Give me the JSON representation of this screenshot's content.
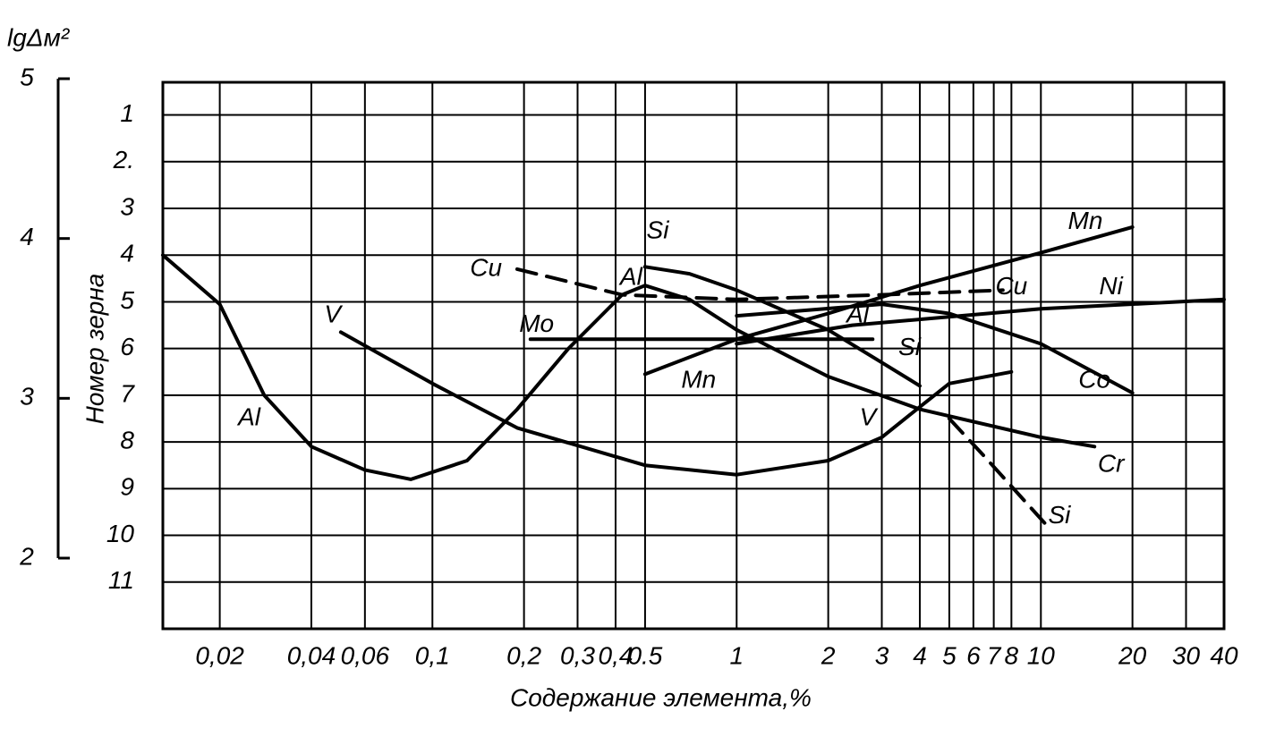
{
  "chart_data": {
    "type": "line",
    "x_label": "Содержание элемента,%",
    "y_label": "Номер зерна",
    "y2_label": "lgΔм²",
    "xscale": "log",
    "grid": true,
    "xlim": [
      0.013,
      40
    ],
    "xticks": [
      {
        "value": 0.02,
        "label": "0,02"
      },
      {
        "value": 0.04,
        "label": "0,04"
      },
      {
        "value": 0.06,
        "label": "0,06"
      },
      {
        "value": 0.1,
        "label": "0,1"
      },
      {
        "value": 0.2,
        "label": "0,2"
      },
      {
        "value": 0.3,
        "label": "0,3"
      },
      {
        "value": 0.4,
        "label": "0,4"
      },
      0.5,
      1,
      2,
      3,
      4,
      5,
      6,
      7,
      8,
      10,
      20,
      30,
      40
    ],
    "ylim": [
      12,
      0.3
    ],
    "yticks": [
      1,
      {
        "value": 2,
        "label": "2."
      },
      3,
      4,
      5,
      6,
      7,
      8,
      9,
      10,
      11
    ],
    "y2lim": [
      2,
      5
    ],
    "y2ticks": [
      2,
      3,
      4,
      5
    ],
    "series": [
      {
        "x": [
          0.013,
          0.02,
          0.028,
          0.04,
          0.06,
          0.085,
          0.13,
          0.19,
          0.28,
          0.42,
          0.5,
          0.7,
          1,
          2,
          4,
          10,
          15
        ],
        "values": [
          4.0,
          5.05,
          7.0,
          8.1,
          8.6,
          8.8,
          8.4,
          7.3,
          6.0,
          4.85,
          4.65,
          4.95,
          5.6,
          6.6,
          7.3,
          7.9,
          8.1
        ],
        "color": "#000000",
        "dashed": false
      },
      {
        "x": [
          0.05,
          0.1,
          0.19,
          0.5,
          1,
          2,
          3,
          4,
          5,
          8
        ],
        "values": [
          5.65,
          6.75,
          7.7,
          8.5,
          8.7,
          8.4,
          7.9,
          7.25,
          6.75,
          6.5
        ],
        "color": "#000000",
        "dashed": false
      },
      {
        "x": [
          0.5,
          0.7,
          1,
          2,
          3,
          4
        ],
        "values": [
          4.25,
          4.4,
          4.75,
          5.6,
          6.3,
          6.8
        ],
        "color": "#000000",
        "dashed": false
      },
      {
        "x": [
          5,
          6.5,
          10.5
        ],
        "values": [
          7.5,
          8.3,
          9.8
        ],
        "color": "#000000",
        "dashed": true
      },
      {
        "x": [
          0.5,
          1,
          2,
          4,
          10,
          20
        ],
        "values": [
          6.55,
          5.8,
          5.25,
          4.65,
          3.95,
          3.4
        ],
        "color": "#000000",
        "dashed": false
      },
      {
        "x": [
          1,
          2.4,
          10,
          40
        ],
        "values": [
          5.9,
          5.5,
          5.15,
          4.95
        ],
        "color": "#000000",
        "dashed": false
      },
      {
        "x": [
          1,
          3,
          5,
          10,
          20
        ],
        "values": [
          5.3,
          5.05,
          5.25,
          5.9,
          6.95
        ],
        "color": "#000000",
        "dashed": false
      },
      {
        "x": [
          0.19,
          0.42,
          1,
          3,
          7.5
        ],
        "values": [
          4.3,
          4.85,
          4.95,
          4.85,
          4.75
        ],
        "color": "#000000",
        "dashed": true
      },
      {
        "x": [
          0.21,
          2.8
        ],
        "values": [
          5.8,
          5.8
        ],
        "color": "#000000",
        "dashed": false
      }
    ],
    "annotations": [
      {
        "text": "Al",
        "x": 0.025,
        "y": 7.5
      },
      {
        "text": "Al",
        "x": 0.45,
        "y": 4.5
      },
      {
        "text": "Al",
        "x": 2.5,
        "y": 5.3
      },
      {
        "text": "V",
        "x": 0.047,
        "y": 5.3
      },
      {
        "text": "V",
        "x": 2.7,
        "y": 7.5
      },
      {
        "text": "Si",
        "x": 0.55,
        "y": 3.5
      },
      {
        "text": "Si",
        "x": 3.7,
        "y": 6.0
      },
      {
        "text": "Si",
        "x": 11.5,
        "y": 9.6
      },
      {
        "text": "Cu",
        "x": 0.15,
        "y": 4.3
      },
      {
        "text": "Cu",
        "x": 8,
        "y": 4.7
      },
      {
        "text": "Mo",
        "x": 0.22,
        "y": 5.5
      },
      {
        "text": "Mn",
        "x": 0.75,
        "y": 6.7
      },
      {
        "text": "Mn",
        "x": 14,
        "y": 3.3
      },
      {
        "text": "Ni",
        "x": 17,
        "y": 4.7
      },
      {
        "text": "Co",
        "x": 15,
        "y": 6.7
      },
      {
        "text": "Cr",
        "x": 17,
        "y": 8.5
      }
    ]
  }
}
